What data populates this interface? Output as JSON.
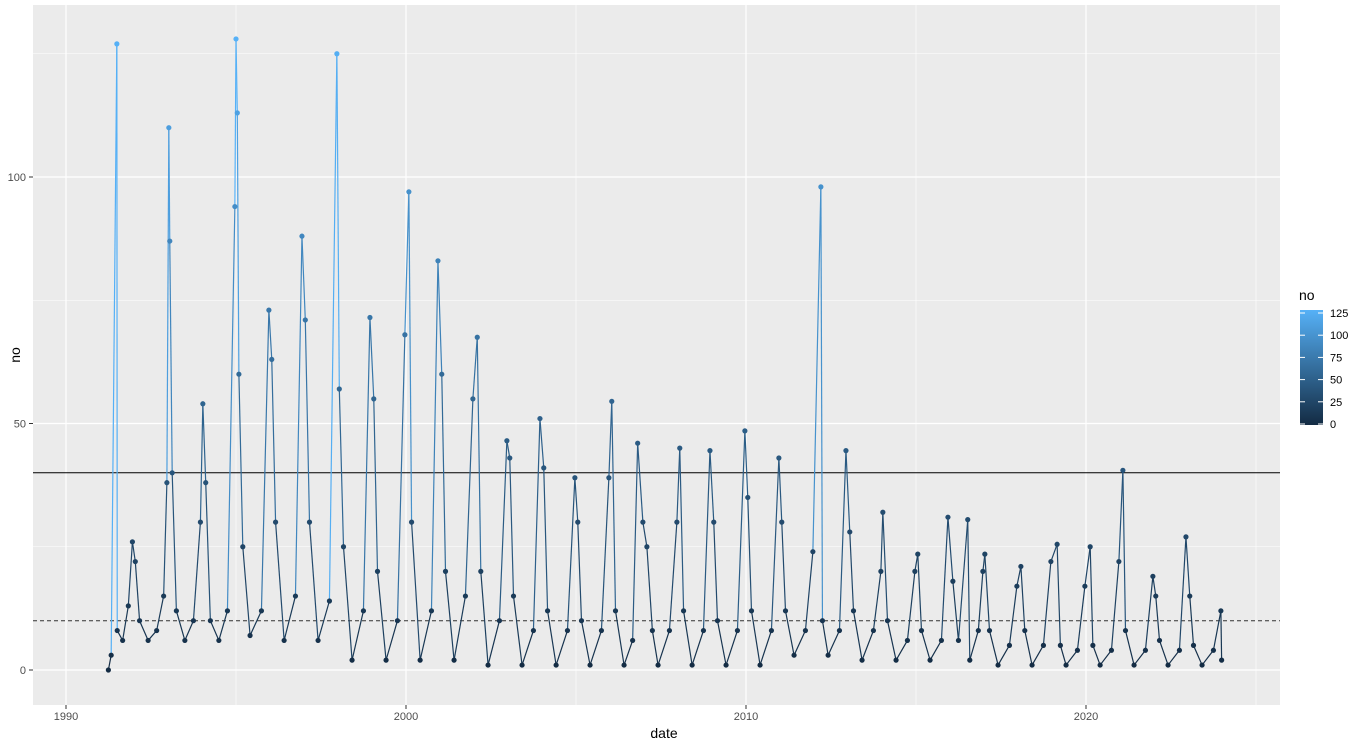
{
  "chart_data": {
    "type": "line",
    "xlabel": "date",
    "ylabel": "no",
    "x_ticks": [
      "1990",
      "2000",
      "2010",
      "2020"
    ],
    "y_ticks": [
      "0",
      "50",
      "100"
    ],
    "xlim": [
      "1989-12-01",
      "2025-06-01"
    ],
    "ylim": [
      -7,
      135
    ],
    "grid": true,
    "hlines": [
      {
        "y": 40,
        "style": "solid",
        "color": "#000000"
      },
      {
        "y": 10,
        "style": "dashed",
        "color": "#333333"
      }
    ],
    "color_scale": {
      "title": "no",
      "low": "#132B43",
      "high": "#56B1F7",
      "range": [
        0,
        128
      ],
      "ticks": [
        "0",
        "25",
        "50",
        "75",
        "100",
        "125"
      ],
      "placement": "right"
    },
    "series": [
      {
        "points": [
          [
            "1991-04-01",
            0
          ],
          [
            "1991-05-01",
            3
          ],
          [
            "1991-07-01",
            127
          ],
          [
            "1991-07-05",
            8
          ],
          [
            "1991-09-01",
            6
          ],
          [
            "1991-11-01",
            13
          ],
          [
            "1991-12-15",
            26
          ],
          [
            "1992-01-15",
            22
          ],
          [
            "1992-03-01",
            10
          ],
          [
            "1992-06-01",
            6
          ],
          [
            "1992-09-01",
            8
          ],
          [
            "1992-11-15",
            15
          ],
          [
            "1992-12-20",
            38
          ],
          [
            "1993-01-10",
            110
          ],
          [
            "1993-01-20",
            87
          ],
          [
            "1993-02-15",
            40
          ],
          [
            "1993-04-01",
            12
          ],
          [
            "1993-07-01",
            6
          ],
          [
            "1993-10-01",
            10
          ],
          [
            "1993-12-15",
            30
          ],
          [
            "1994-01-10",
            54
          ],
          [
            "1994-02-10",
            38
          ],
          [
            "1994-04-01",
            10
          ],
          [
            "1994-07-01",
            6
          ],
          [
            "1994-10-01",
            12
          ],
          [
            "1994-12-20",
            94
          ],
          [
            "1995-01-01",
            128
          ],
          [
            "1995-01-15",
            113
          ],
          [
            "1995-02-01",
            60
          ],
          [
            "1995-03-15",
            25
          ],
          [
            "1995-06-01",
            7
          ],
          [
            "1995-10-01",
            12
          ],
          [
            "1995-12-20",
            73
          ],
          [
            "1996-01-20",
            63
          ],
          [
            "1996-03-01",
            30
          ],
          [
            "1996-06-01",
            6
          ],
          [
            "1996-10-01",
            15
          ],
          [
            "1996-12-10",
            88
          ],
          [
            "1997-01-15",
            71
          ],
          [
            "1997-03-01",
            30
          ],
          [
            "1997-06-01",
            6
          ],
          [
            "1997-10-01",
            14
          ],
          [
            "1997-12-20",
            125
          ],
          [
            "1998-01-15",
            57
          ],
          [
            "1998-03-01",
            25
          ],
          [
            "1998-06-01",
            2
          ],
          [
            "1998-10-01",
            12
          ],
          [
            "1998-12-10",
            71.5
          ],
          [
            "1999-01-20",
            55
          ],
          [
            "1999-03-01",
            20
          ],
          [
            "1999-06-01",
            2
          ],
          [
            "1999-10-01",
            10
          ],
          [
            "1999-12-20",
            68
          ],
          [
            "2000-02-01",
            97
          ],
          [
            "2000-03-01",
            30
          ],
          [
            "2000-06-01",
            2
          ],
          [
            "2000-10-01",
            12
          ],
          [
            "2000-12-10",
            83
          ],
          [
            "2001-01-20",
            60
          ],
          [
            "2001-03-01",
            20
          ],
          [
            "2001-06-01",
            2
          ],
          [
            "2001-10-01",
            15
          ],
          [
            "2001-12-20",
            55
          ],
          [
            "2002-02-05",
            67.5
          ],
          [
            "2002-03-15",
            20
          ],
          [
            "2002-06-01",
            1
          ],
          [
            "2002-10-01",
            10
          ],
          [
            "2002-12-20",
            46.5
          ],
          [
            "2003-01-20",
            43
          ],
          [
            "2003-03-01",
            15
          ],
          [
            "2003-06-01",
            1
          ],
          [
            "2003-10-01",
            8
          ],
          [
            "2003-12-10",
            51
          ],
          [
            "2004-01-20",
            41
          ],
          [
            "2004-03-01",
            12
          ],
          [
            "2004-06-01",
            1
          ],
          [
            "2004-10-01",
            8
          ],
          [
            "2004-12-20",
            39
          ],
          [
            "2005-01-20",
            30
          ],
          [
            "2005-03-01",
            10
          ],
          [
            "2005-06-01",
            1
          ],
          [
            "2005-10-01",
            8
          ],
          [
            "2005-12-20",
            39
          ],
          [
            "2006-01-20",
            54.5
          ],
          [
            "2006-03-01",
            12
          ],
          [
            "2006-06-01",
            1
          ],
          [
            "2006-09-01",
            6
          ],
          [
            "2006-10-25",
            46
          ],
          [
            "2006-12-20",
            30
          ],
          [
            "2007-02-01",
            25
          ],
          [
            "2007-04-01",
            8
          ],
          [
            "2007-06-01",
            1
          ],
          [
            "2007-10-01",
            8
          ],
          [
            "2007-12-20",
            30
          ],
          [
            "2008-01-20",
            45
          ],
          [
            "2008-03-01",
            12
          ],
          [
            "2008-06-01",
            1
          ],
          [
            "2008-10-01",
            8
          ],
          [
            "2008-12-10",
            44.5
          ],
          [
            "2009-01-20",
            30
          ],
          [
            "2009-03-01",
            10
          ],
          [
            "2009-06-01",
            1
          ],
          [
            "2009-10-01",
            8
          ],
          [
            "2009-12-20",
            48.5
          ],
          [
            "2010-01-20",
            35
          ],
          [
            "2010-03-01",
            12
          ],
          [
            "2010-06-01",
            1
          ],
          [
            "2010-10-01",
            8
          ],
          [
            "2010-12-20",
            43
          ],
          [
            "2011-01-20",
            30
          ],
          [
            "2011-03-01",
            12
          ],
          [
            "2011-06-01",
            3
          ],
          [
            "2011-10-01",
            8
          ],
          [
            "2011-12-20",
            24
          ],
          [
            "2012-03-15",
            98
          ],
          [
            "2012-04-01",
            10
          ],
          [
            "2012-06-01",
            3
          ],
          [
            "2012-10-01",
            8
          ],
          [
            "2012-12-10",
            44.5
          ],
          [
            "2013-01-20",
            28
          ],
          [
            "2013-03-01",
            12
          ],
          [
            "2013-06-01",
            2
          ],
          [
            "2013-10-01",
            8
          ],
          [
            "2013-12-20",
            20
          ],
          [
            "2014-01-10",
            32
          ],
          [
            "2014-03-01",
            10
          ],
          [
            "2014-06-01",
            2
          ],
          [
            "2014-10-01",
            6
          ],
          [
            "2014-12-20",
            20
          ],
          [
            "2015-01-20",
            23.5
          ],
          [
            "2015-03-01",
            8
          ],
          [
            "2015-06-01",
            2
          ],
          [
            "2015-10-01",
            6
          ],
          [
            "2015-12-10",
            31
          ],
          [
            "2016-02-01",
            18
          ],
          [
            "2016-04-01",
            6
          ],
          [
            "2016-07-10",
            30.5
          ],
          [
            "2016-08-01",
            2
          ],
          [
            "2016-11-01",
            8
          ],
          [
            "2016-12-20",
            20
          ],
          [
            "2017-01-10",
            23.5
          ],
          [
            "2017-03-01",
            8
          ],
          [
            "2017-06-01",
            1
          ],
          [
            "2017-10-01",
            5
          ],
          [
            "2017-12-20",
            17
          ],
          [
            "2018-02-01",
            21
          ],
          [
            "2018-03-15",
            8
          ],
          [
            "2018-06-01",
            1
          ],
          [
            "2018-10-01",
            5
          ],
          [
            "2018-12-20",
            22
          ],
          [
            "2019-02-25",
            25.5
          ],
          [
            "2019-04-01",
            5
          ],
          [
            "2019-06-01",
            1
          ],
          [
            "2019-10-01",
            4
          ],
          [
            "2019-12-20",
            17
          ],
          [
            "2020-02-15",
            25
          ],
          [
            "2020-03-15",
            5
          ],
          [
            "2020-06-01",
            1
          ],
          [
            "2020-10-01",
            4
          ],
          [
            "2020-12-20",
            22
          ],
          [
            "2021-02-01",
            40.5
          ],
          [
            "2021-03-01",
            8
          ],
          [
            "2021-06-01",
            1
          ],
          [
            "2021-10-01",
            4
          ],
          [
            "2021-12-20",
            19
          ],
          [
            "2022-01-20",
            15
          ],
          [
            "2022-03-01",
            6
          ],
          [
            "2022-06-01",
            1
          ],
          [
            "2022-10-01",
            4
          ],
          [
            "2022-12-10",
            27
          ],
          [
            "2023-01-20",
            15
          ],
          [
            "2023-03-01",
            5
          ],
          [
            "2023-06-01",
            1
          ],
          [
            "2023-10-01",
            4
          ],
          [
            "2023-12-20",
            12
          ],
          [
            "2023-12-28",
            2
          ]
        ]
      }
    ]
  }
}
